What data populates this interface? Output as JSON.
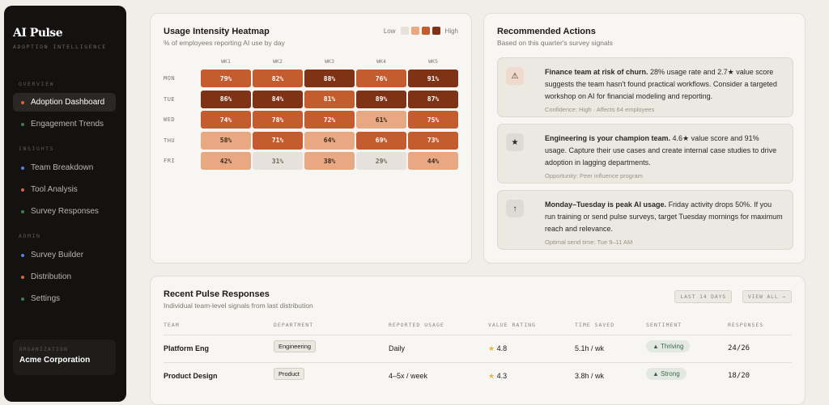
{
  "sidebar": {
    "brand": "AI Pulse",
    "subtitle": "ADOPTION INTELLIGENCE",
    "sections": [
      {
        "label": "OVERVIEW"
      },
      {
        "label": "INSIGHTS"
      },
      {
        "label": "ADMIN"
      }
    ],
    "items": [
      {
        "label": "Adoption Dashboard",
        "dot": "#d9653a",
        "active": true
      },
      {
        "label": "Engagement Trends",
        "dot": "#3f7a52"
      },
      {
        "label": "Team Breakdown",
        "dot": "#4f86d9"
      },
      {
        "label": "Tool Analysis",
        "dot": "#d9653a"
      },
      {
        "label": "Survey Responses",
        "dot": "#3f7a52"
      },
      {
        "label": "Survey Builder",
        "dot": "#4f86d9"
      },
      {
        "label": "Distribution",
        "dot": "#d9653a"
      },
      {
        "label": "Settings",
        "dot": "#3f7a52"
      }
    ],
    "org_label": "ORGANIZATION",
    "org_name": "Acme Corporation"
  },
  "heatmap": {
    "title": "Usage Intensity Heatmap",
    "subtitle": "% of employees reporting AI use by day",
    "legend_low": "Low",
    "legend_high": "High",
    "legend_colors": [
      "#e6e1da",
      "#e8a882",
      "#c45c30",
      "#7e3216"
    ],
    "columns": [
      "WK1",
      "WK2",
      "WK3",
      "WK4",
      "WK5"
    ],
    "rows": [
      {
        "day": "MON",
        "values": [
          "79%",
          "82%",
          "88%",
          "76%",
          "91%"
        ],
        "levels": [
          2,
          2,
          3,
          2,
          3
        ]
      },
      {
        "day": "TUE",
        "values": [
          "86%",
          "84%",
          "81%",
          "89%",
          "87%"
        ],
        "levels": [
          3,
          3,
          2,
          3,
          3
        ]
      },
      {
        "day": "WED",
        "values": [
          "74%",
          "78%",
          "72%",
          "61%",
          "75%"
        ],
        "levels": [
          2,
          2,
          2,
          1,
          2
        ]
      },
      {
        "day": "THU",
        "values": [
          "58%",
          "71%",
          "64%",
          "69%",
          "73%"
        ],
        "levels": [
          1,
          2,
          1,
          2,
          2
        ]
      },
      {
        "day": "FRI",
        "values": [
          "42%",
          "31%",
          "38%",
          "29%",
          "44%"
        ],
        "levels": [
          1,
          0,
          1,
          0,
          1
        ]
      }
    ]
  },
  "actions": {
    "title": "Recommended Actions",
    "subtitle": "Based on this quarter's survey signals",
    "items": [
      {
        "icon": "warning-icon",
        "glyph": "⚠",
        "bold": "Finance team at risk of churn.",
        "text": " 28% usage rate and 2.7★ value score suggests the team hasn't found practical workflows. Consider a targeted workshop on AI for financial modeling and reporting.",
        "meta": "Confidence: High · Affects 64 employees",
        "icon_bg": "#f0d9cd"
      },
      {
        "icon": "star-icon",
        "glyph": "★",
        "bold": "Engineering is your champion team.",
        "text": " 4.6★ value score and 91% usage. Capture their use cases and create internal case studies to drive adoption in lagging departments.",
        "meta": "Opportunity: Peer influence program",
        "icon_bg": "#dedad4"
      },
      {
        "icon": "arrow-up-icon",
        "glyph": "↑",
        "bold": "Monday–Tuesday is peak AI usage.",
        "text": " Friday activity drops 50%. If you run training or send pulse surveys, target Tuesday mornings for maximum reach and relevance.",
        "meta": "Optimal send time: Tue 9–11 AM",
        "icon_bg": "#dedad4"
      }
    ]
  },
  "responses": {
    "title": "Recent Pulse Responses",
    "subtitle": "Individual team-level signals from last distribution",
    "range_button": "LAST 14 DAYS",
    "view_all": "VIEW ALL →",
    "headers": [
      "TEAM",
      "DEPARTMENT",
      "REPORTED USAGE",
      "VALUE RATING",
      "TIME SAVED",
      "SENTIMENT",
      "RESPONSES"
    ],
    "rows": [
      {
        "team": "Platform Eng",
        "department": "Engineering",
        "usage": "Daily",
        "rating": "4.8",
        "time": "5.1h / wk",
        "sentiment": "▲ Thriving",
        "responses": "24/26"
      },
      {
        "team": "Product Design",
        "department": "Product",
        "usage": "4–5x / week",
        "rating": "4.3",
        "time": "3.8h / wk",
        "sentiment": "▲ Strong",
        "responses": "18/20"
      }
    ]
  }
}
